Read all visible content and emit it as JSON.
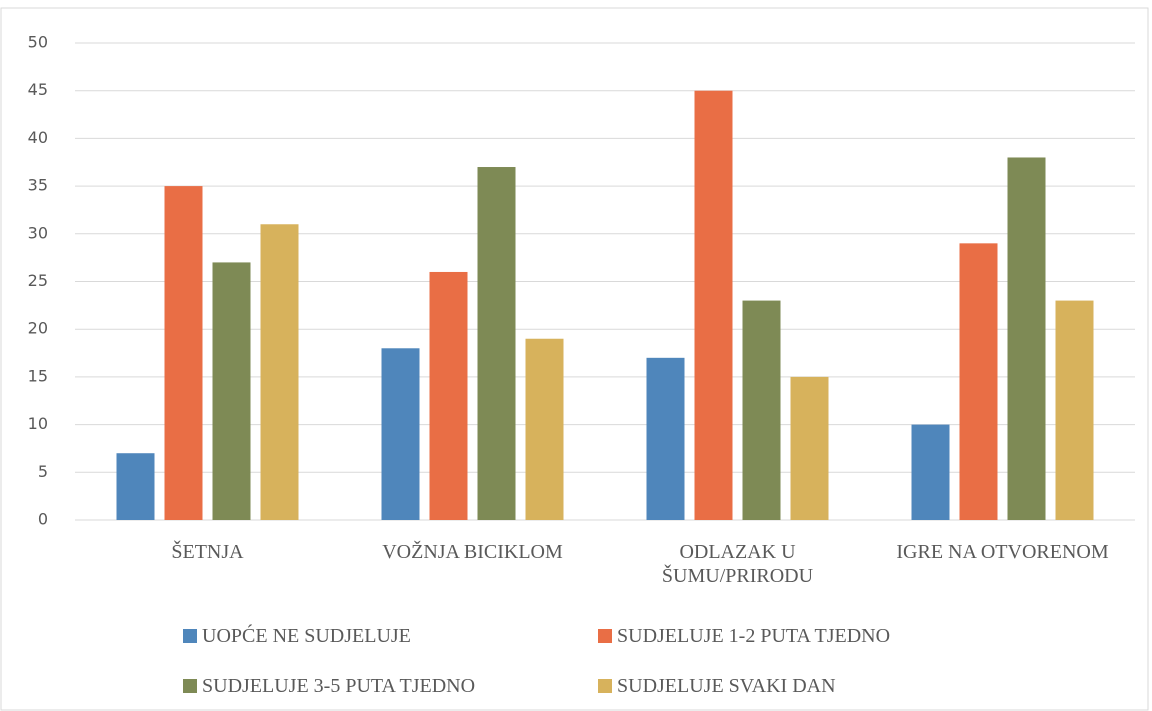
{
  "chart_data": {
    "type": "bar",
    "categories": [
      "ŠETNJA",
      "VOŽNJA BICIKLOM",
      "ODLAZAK U ŠUMU/PRIRODU",
      "IGRE NA OTVORENOM"
    ],
    "series": [
      {
        "name": "UOPĆE NE SUDJELUJE",
        "color": "#4f86bb",
        "values": [
          7,
          18,
          17,
          10
        ]
      },
      {
        "name": "SUDJELUJE 1-2 PUTA TJEDNO",
        "color": "#e96e45",
        "values": [
          35,
          26,
          45,
          29
        ]
      },
      {
        "name": "SUDJELUJE 3-5 PUTA TJEDNO",
        "color": "#7e8a55",
        "values": [
          27,
          37,
          23,
          38
        ]
      },
      {
        "name": "SUDJELUJE SVAKI DAN",
        "color": "#d7b25c",
        "values": [
          31,
          19,
          15,
          23
        ]
      }
    ],
    "ylim": [
      0,
      50
    ],
    "yticks": [
      0,
      5,
      10,
      15,
      20,
      25,
      30,
      35,
      40,
      45,
      50
    ],
    "grid": true
  }
}
